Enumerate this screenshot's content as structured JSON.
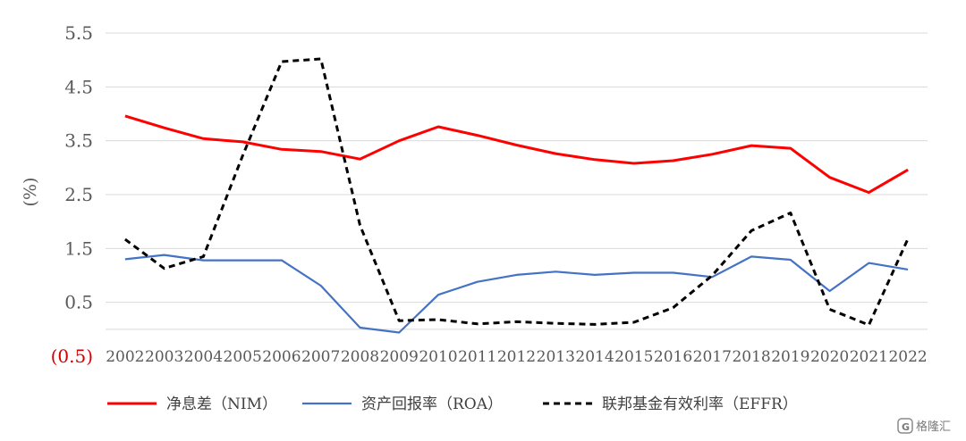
{
  "chart_data": {
    "type": "line",
    "title": "",
    "xlabel": "",
    "ylabel": "(%)",
    "ylim": [
      -0.5,
      5.5
    ],
    "yticks": [
      "5.5",
      "4.5",
      "3.5",
      "2.5",
      "1.5",
      "0.5",
      "(0.5)"
    ],
    "ytick_values": [
      5.5,
      4.5,
      3.5,
      2.5,
      1.5,
      0.5,
      -0.5
    ],
    "x": [
      "2002",
      "2003",
      "2004",
      "2005",
      "2006",
      "2007",
      "2008",
      "2009",
      "2010",
      "2011",
      "2012",
      "2013",
      "2014",
      "2015",
      "2016",
      "2017",
      "2018",
      "2019",
      "2020",
      "2021",
      "2022"
    ],
    "grid": true,
    "legend_position": "bottom",
    "series": [
      {
        "name": "净息差（NIM）",
        "color": "#ff0000",
        "style": "solid",
        "values": [
          3.96,
          3.74,
          3.54,
          3.48,
          3.34,
          3.3,
          3.16,
          3.5,
          3.76,
          3.6,
          3.42,
          3.26,
          3.15,
          3.08,
          3.13,
          3.25,
          3.41,
          3.36,
          2.82,
          2.54,
          2.96
        ]
      },
      {
        "name": "资产回报率（ROA）",
        "color": "#4472c4",
        "style": "solid",
        "values": [
          1.3,
          1.38,
          1.28,
          1.28,
          1.28,
          0.81,
          0.03,
          -0.06,
          0.64,
          0.88,
          1.01,
          1.07,
          1.01,
          1.05,
          1.05,
          0.97,
          1.35,
          1.29,
          0.71,
          1.23,
          1.11
        ]
      },
      {
        "name": "联邦基金有效利率（EFFR）",
        "color": "#000000",
        "style": "dashed",
        "values": [
          1.67,
          1.13,
          1.35,
          3.22,
          4.97,
          5.02,
          1.93,
          0.16,
          0.18,
          0.1,
          0.14,
          0.11,
          0.09,
          0.13,
          0.4,
          1.0,
          1.83,
          2.16,
          0.37,
          0.08,
          1.68
        ]
      }
    ]
  },
  "watermark": {
    "text": "格隆汇",
    "icon": "g-logo-icon"
  }
}
